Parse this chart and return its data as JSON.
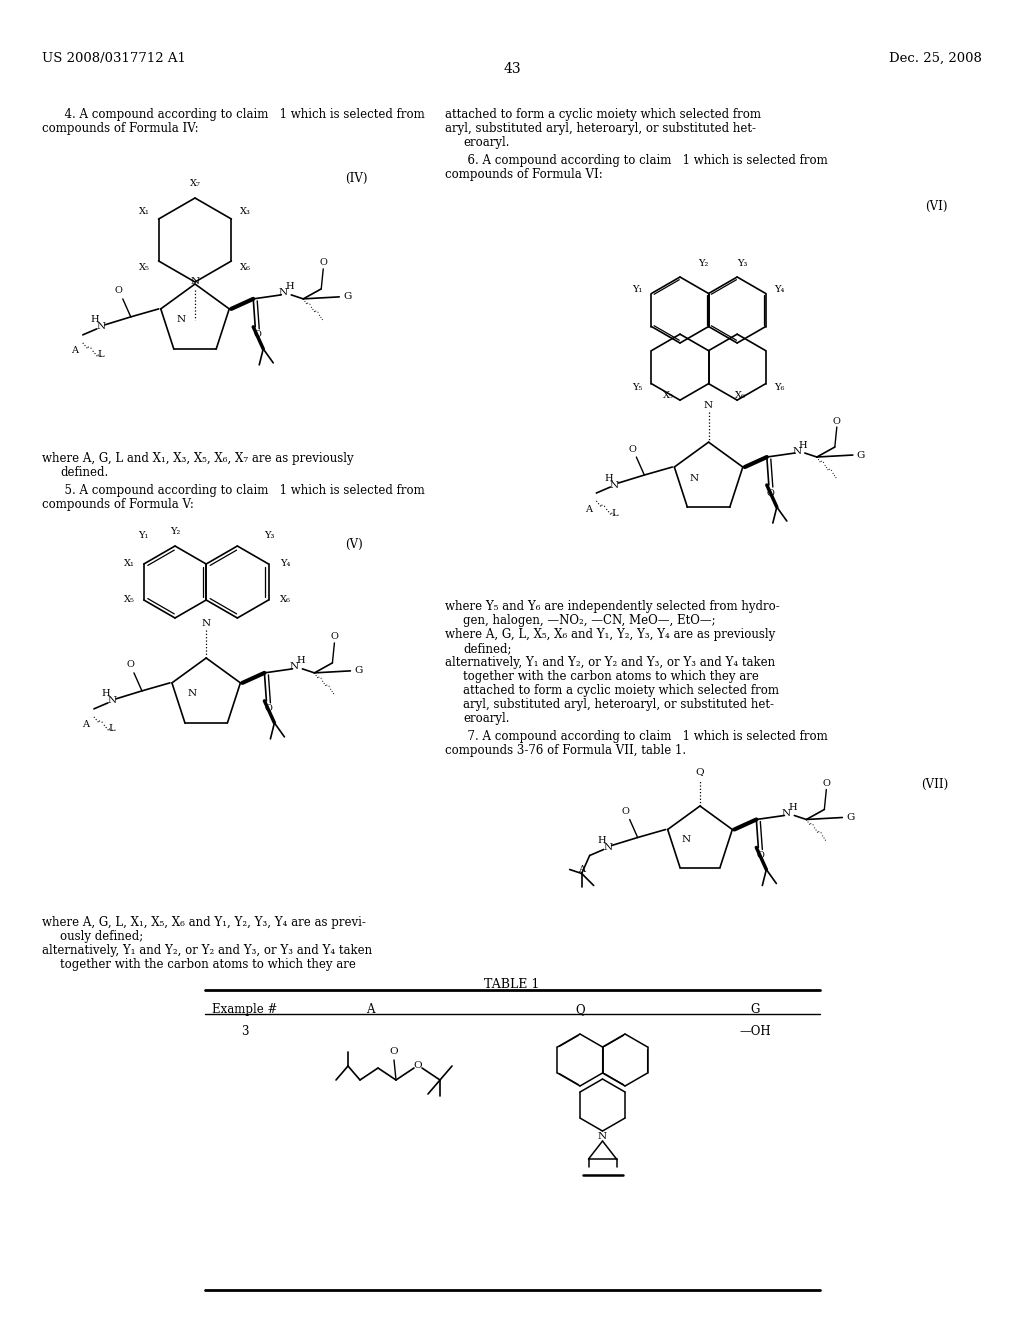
{
  "page_number": "43",
  "patent_left": "US 2008/0317712 A1",
  "patent_right": "Dec. 25, 2008",
  "bg": "#ffffff"
}
